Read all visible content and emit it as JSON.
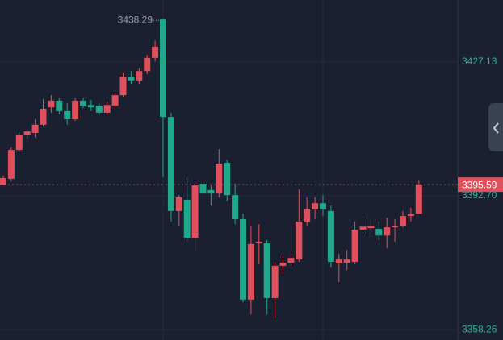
{
  "chart_data": {
    "type": "candlestick",
    "open": [
      3395.6,
      3397.1,
      3404.5,
      3408.3,
      3408.9,
      3411.0,
      3415.5,
      3417.2,
      3414.5,
      3412.4,
      3417.2,
      3416.1,
      3415.9,
      3414.1,
      3415.9,
      3418.6,
      3423.4,
      3422.4,
      3424.8,
      3428.2,
      3438.1,
      3413.0,
      3388.8,
      3391.7,
      3381.9,
      3395.8,
      3394.2,
      3393.3,
      3401.2,
      3392.9,
      3386.7,
      3366.0,
      3380.5,
      3380.5,
      3366.4,
      3374.7,
      3375.5,
      3376.3,
      3386.1,
      3389.2,
      3390.8,
      3388.8,
      3375.3,
      3375.5,
      3375.7,
      3384.0,
      3384.4,
      3384.2,
      3382.5,
      3384.6,
      3385.0,
      3387.5,
      3388.1
    ],
    "high": [
      3397.9,
      3405.2,
      3408.9,
      3409.9,
      3412.4,
      3417.6,
      3418.6,
      3417.8,
      3416.6,
      3417.8,
      3417.8,
      3417.4,
      3416.6,
      3417.0,
      3419.2,
      3424.4,
      3424.8,
      3425.5,
      3429.0,
      3432.7,
      3438.29,
      3414.1,
      3392.9,
      3397.5,
      3396.4,
      3396.4,
      3395.4,
      3404.7,
      3402.0,
      3395.8,
      3388.1,
      3385.0,
      3385.4,
      3381.3,
      3375.7,
      3377.2,
      3377.8,
      3394.4,
      3392.3,
      3392.3,
      3392.9,
      3390.2,
      3377.8,
      3378.8,
      3386.1,
      3387.5,
      3386.7,
      3386.1,
      3387.1,
      3386.7,
      3388.8,
      3389.6,
      3396.6
    ],
    "low": [
      3395.4,
      3396.4,
      3404.1,
      3407.4,
      3407.8,
      3410.5,
      3414.1,
      3413.7,
      3411.0,
      3412.0,
      3415.3,
      3414.5,
      3413.4,
      3413.4,
      3415.5,
      3418.2,
      3421.5,
      3421.5,
      3424.0,
      3427.3,
      3397.5,
      3386.1,
      3385.0,
      3380.9,
      3378.4,
      3391.7,
      3390.2,
      3392.3,
      3391.3,
      3385.4,
      3365.3,
      3362.2,
      3375.1,
      3362.2,
      3361.2,
      3372.6,
      3374.7,
      3375.7,
      3385.0,
      3386.7,
      3387.5,
      3374.2,
      3370.5,
      3373.6,
      3375.1,
      3383.0,
      3381.9,
      3381.3,
      3379.2,
      3380.9,
      3384.6,
      3386.1,
      3388.1
    ],
    "close": [
      3397.3,
      3404.5,
      3408.3,
      3409.3,
      3411.0,
      3415.1,
      3417.2,
      3414.5,
      3412.4,
      3417.2,
      3415.9,
      3415.5,
      3414.1,
      3416.1,
      3418.6,
      3423.4,
      3422.4,
      3424.8,
      3428.2,
      3431.1,
      3413.0,
      3388.8,
      3392.3,
      3381.9,
      3395.4,
      3393.3,
      3393.3,
      3401.0,
      3392.9,
      3386.7,
      3366.0,
      3380.3,
      3380.9,
      3366.4,
      3374.7,
      3375.5,
      3376.7,
      3386.1,
      3389.2,
      3390.8,
      3389.2,
      3375.7,
      3376.3,
      3376.3,
      3384.0,
      3384.8,
      3385.0,
      3382.5,
      3384.6,
      3385.0,
      3387.5,
      3388.1,
      3395.59
    ],
    "up_color": "#e0505c",
    "down_color": "#1fa88a",
    "ylim": [
      3355.6,
      3443.1
    ],
    "yticks": [
      {
        "value": 3358.26,
        "label": "3358.26"
      },
      {
        "value": 3392.7,
        "label": "3392.70"
      },
      {
        "value": 3427.13,
        "label": "3427.13"
      }
    ],
    "grid": true
  }
}
